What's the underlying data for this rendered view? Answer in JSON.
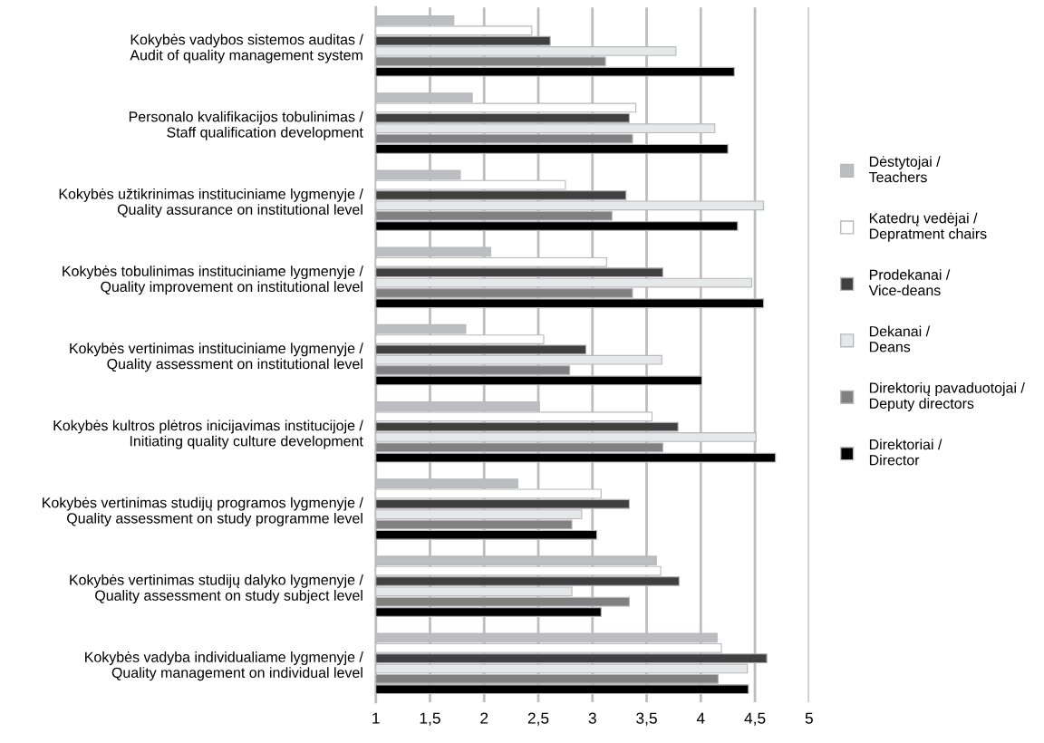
{
  "chart_data": {
    "type": "bar",
    "orientation": "horizontal",
    "categories": [
      "Kokybės vadybos sistemos auditas /\nAudit of quality management system",
      "Personalo kvalifikacijos tobulinimas /\nStaff qualification development",
      "Kokybės užtikrinimas instituciniame lygmenyje /\nQuality assurance on institutional level",
      "Kokybės tobulinimas instituciniame lygmenyje /\nQuality improvement on institutional level",
      "Kokybės vertinimas instituciniame lygmenyje /\nQuality assessment on institutional level",
      "Kokybės kultros plėtros inicijavimas institucijoje /\nInitiating quality culture development",
      "Kokybės vertinimas studijų programos lygmenyje /\nQuality assessment on study programme level",
      "Kokybės vertinimas studijų dalyko lygmenyje /\nQuality assessment on study subject level",
      "Kokybės vadyba individualiame lygmenyje /\nQuality management on individual level"
    ],
    "series": [
      {
        "name": "Dėstytojai /\nTeachers",
        "color": "#bcbdc0",
        "values": [
          1.72,
          1.89,
          1.78,
          2.06,
          1.83,
          2.51,
          2.31,
          3.59,
          4.15
        ]
      },
      {
        "name": "Katedrų vedėjai /\nDepratment chairs",
        "color": "#ffffff",
        "values": [
          2.44,
          3.4,
          2.75,
          3.13,
          2.55,
          3.55,
          3.08,
          3.63,
          4.19
        ]
      },
      {
        "name": "Prodekanai /\nVice-deans",
        "color": "#404040",
        "values": [
          2.61,
          3.34,
          3.31,
          3.65,
          2.94,
          3.79,
          3.34,
          3.8,
          4.61
        ]
      },
      {
        "name": "Dekanai /\nDeans",
        "color": "#e6e7e8",
        "values": [
          3.77,
          4.13,
          4.58,
          4.47,
          3.64,
          4.51,
          2.9,
          2.81,
          4.43
        ]
      },
      {
        "name": "Direktorių pavaduotojai /\nDeputy directors",
        "color": "#808080",
        "values": [
          3.12,
          3.37,
          3.18,
          3.37,
          2.79,
          3.65,
          2.81,
          3.34,
          4.16
        ]
      },
      {
        "name": "Direktoriai /\nDirector",
        "color": "#000000",
        "values": [
          4.31,
          4.25,
          4.34,
          4.58,
          4.01,
          4.69,
          3.04,
          3.08,
          4.44
        ]
      }
    ],
    "xlim": [
      1,
      5
    ],
    "xticks": [
      1,
      {
        "value": 1.5,
        "label": "1,5"
      },
      2,
      {
        "value": 2.5,
        "label": "2,5"
      },
      3,
      {
        "value": 3.5,
        "label": "3,5"
      },
      4,
      {
        "value": 4.5,
        "label": "4,5"
      },
      5
    ],
    "grid": "x",
    "legend": "right",
    "marker": "square"
  }
}
